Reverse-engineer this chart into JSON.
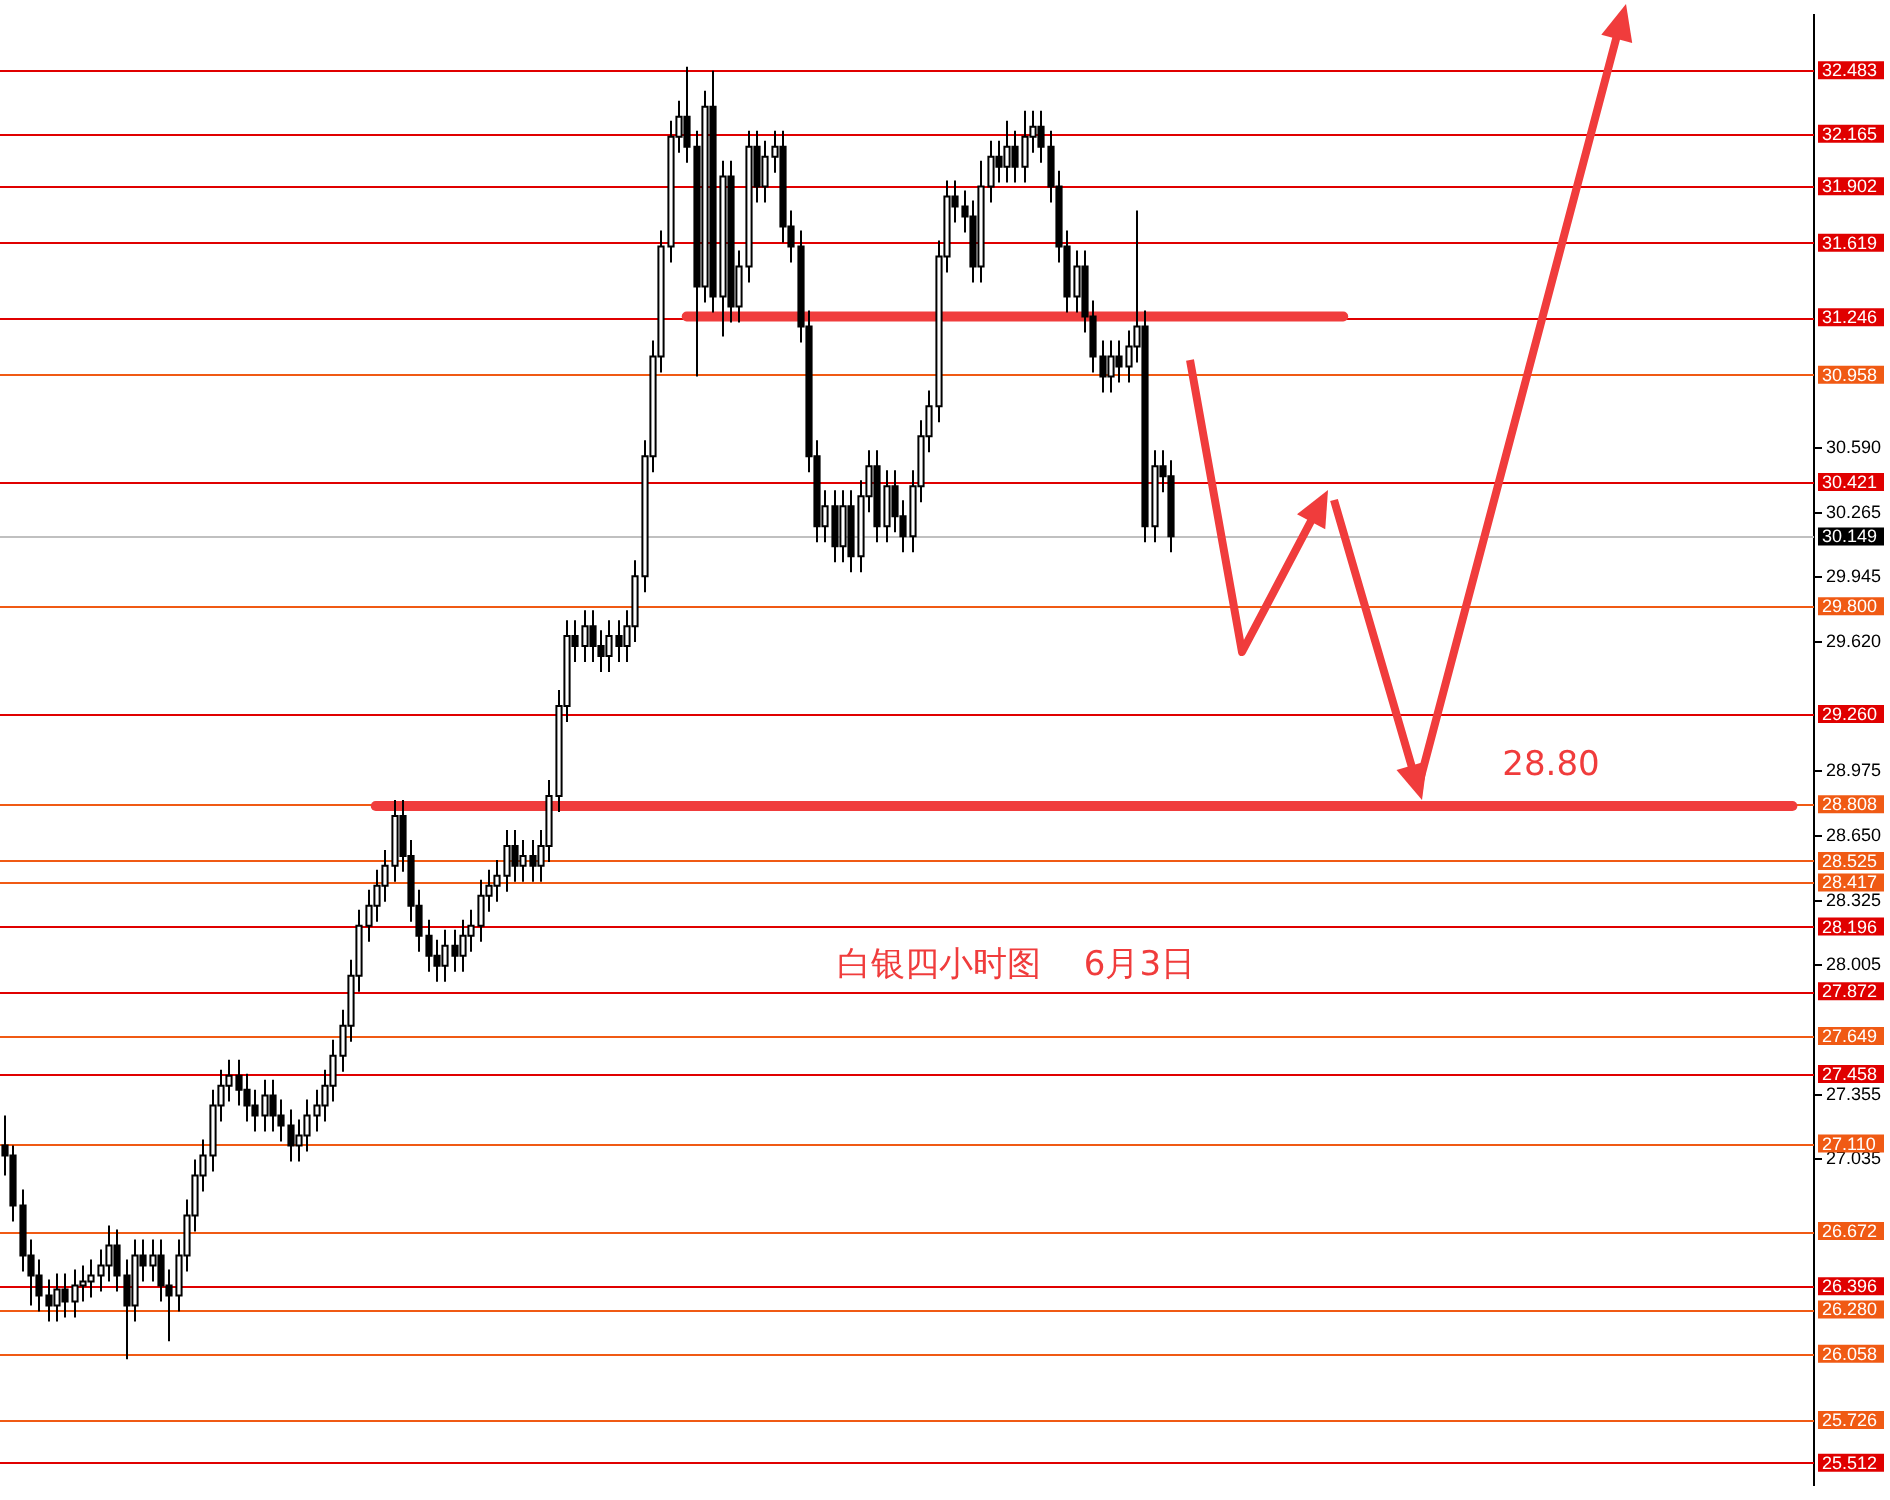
{
  "chart_data": {
    "type": "candlestick",
    "categories": [
      null,
      null,
      null,
      null,
      null,
      null,
      null,
      null,
      null,
      null,
      null,
      null,
      null,
      null,
      null,
      null,
      null,
      null,
      null,
      null,
      null,
      null,
      null,
      null,
      null,
      null,
      null,
      null,
      null,
      null,
      null,
      null,
      null,
      null,
      null,
      null,
      null,
      null,
      null,
      null,
      null,
      null,
      null,
      null,
      null,
      null,
      null,
      null,
      null,
      null,
      null,
      null,
      null,
      null,
      null,
      null,
      null,
      null,
      null,
      null,
      null,
      null,
      null,
      null,
      null,
      null,
      null,
      null,
      null,
      null,
      null,
      null,
      null,
      null,
      null,
      null,
      null,
      null,
      null,
      null,
      null,
      null,
      null,
      null,
      null,
      null,
      null,
      null,
      null,
      null,
      null,
      null,
      null,
      null,
      null,
      null,
      null,
      null,
      null,
      null,
      null,
      null,
      null,
      null,
      null,
      null,
      null,
      null,
      null,
      null,
      null,
      null,
      null,
      null,
      null,
      null,
      null,
      null,
      null,
      null,
      null,
      null,
      null,
      null,
      null,
      null,
      null,
      null,
      null,
      null,
      null,
      null,
      null,
      null,
      null,
      null,
      null,
      null,
      null,
      null,
      null,
      null,
      null,
      null,
      null,
      null,
      null,
      null,
      null,
      null,
      null,
      null,
      null,
      null,
      null,
      null,
      null,
      null,
      null,
      null,
      null,
      null,
      null,
      null,
      null,
      null,
      null,
      null,
      null,
      null,
      null,
      null,
      null,
      null,
      null,
      null,
      null,
      null,
      null,
      null,
      null,
      null,
      null,
      null,
      null,
      null,
      null,
      null,
      null,
      null,
      null,
      null,
      null,
      null,
      null,
      null,
      null,
      null,
      null,
      null,
      null,
      null,
      null,
      null,
      null,
      null,
      null,
      null,
      null,
      null
    ],
    "ohlc": [
      [
        27.1,
        27.25,
        26.95,
        27.05
      ],
      [
        27.05,
        27.1,
        26.72,
        26.8
      ],
      [
        26.8,
        26.88,
        26.47,
        26.55
      ],
      [
        26.55,
        26.63,
        26.3,
        26.45
      ],
      [
        26.45,
        26.53,
        26.27,
        26.35
      ],
      [
        26.35,
        26.43,
        26.22,
        26.3
      ],
      [
        26.3,
        26.46,
        26.22,
        26.38
      ],
      [
        26.38,
        26.46,
        26.24,
        26.32
      ],
      [
        26.32,
        26.48,
        26.24,
        26.4
      ],
      [
        26.4,
        26.5,
        26.32,
        26.42
      ],
      [
        26.42,
        26.53,
        26.34,
        26.45
      ],
      [
        26.45,
        26.58,
        26.37,
        26.5
      ],
      [
        26.5,
        26.7,
        26.42,
        26.6
      ],
      [
        26.6,
        26.68,
        26.37,
        26.45
      ],
      [
        26.45,
        26.53,
        26.03,
        26.3
      ],
      [
        26.3,
        26.63,
        26.22,
        26.55
      ],
      [
        26.55,
        26.63,
        26.42,
        26.5
      ],
      [
        26.5,
        26.63,
        26.42,
        26.55
      ],
      [
        26.55,
        26.63,
        26.32,
        26.4
      ],
      [
        26.4,
        26.48,
        26.12,
        26.35
      ],
      [
        26.35,
        26.63,
        26.27,
        26.55
      ],
      [
        26.55,
        26.83,
        26.47,
        26.75
      ],
      [
        26.75,
        27.03,
        26.67,
        26.95
      ],
      [
        26.95,
        27.13,
        26.87,
        27.05
      ],
      [
        27.05,
        27.38,
        26.97,
        27.3
      ],
      [
        27.3,
        27.48,
        27.22,
        27.4
      ],
      [
        27.4,
        27.53,
        27.32,
        27.45
      ],
      [
        27.45,
        27.53,
        27.3,
        27.38
      ],
      [
        27.38,
        27.46,
        27.22,
        27.3
      ],
      [
        27.3,
        27.38,
        27.17,
        27.25
      ],
      [
        27.25,
        27.43,
        27.17,
        27.35
      ],
      [
        27.35,
        27.43,
        27.17,
        27.25
      ],
      [
        27.25,
        27.33,
        27.12,
        27.2
      ],
      [
        27.2,
        27.28,
        27.02,
        27.1
      ],
      [
        27.1,
        27.23,
        27.02,
        27.15
      ],
      [
        27.15,
        27.33,
        27.07,
        27.25
      ],
      [
        27.25,
        27.38,
        27.17,
        27.3
      ],
      [
        27.3,
        27.48,
        27.22,
        27.4
      ],
      [
        27.4,
        27.63,
        27.32,
        27.55
      ],
      [
        27.55,
        27.78,
        27.47,
        27.7
      ],
      [
        27.7,
        28.03,
        27.62,
        27.95
      ],
      [
        27.95,
        28.28,
        27.87,
        28.2
      ],
      [
        28.2,
        28.38,
        28.12,
        28.3
      ],
      [
        28.3,
        28.48,
        28.22,
        28.4
      ],
      [
        28.4,
        28.58,
        28.32,
        28.5
      ],
      [
        28.5,
        28.83,
        28.42,
        28.75
      ],
      [
        28.75,
        28.83,
        28.47,
        28.55
      ],
      [
        28.55,
        28.63,
        28.22,
        28.3
      ],
      [
        28.3,
        28.38,
        28.07,
        28.15
      ],
      [
        28.15,
        28.23,
        27.97,
        28.05
      ],
      [
        28.05,
        28.13,
        27.92,
        28.0
      ],
      [
        28.0,
        28.18,
        27.92,
        28.1
      ],
      [
        28.1,
        28.18,
        27.97,
        28.05
      ],
      [
        28.05,
        28.23,
        27.97,
        28.15
      ],
      [
        28.15,
        28.28,
        28.07,
        28.2
      ],
      [
        28.2,
        28.43,
        28.12,
        28.35
      ],
      [
        28.35,
        28.48,
        28.27,
        28.4
      ],
      [
        28.4,
        28.53,
        28.32,
        28.45
      ],
      [
        28.45,
        28.68,
        28.37,
        28.6
      ],
      [
        28.6,
        28.68,
        28.42,
        28.5
      ],
      [
        28.5,
        28.63,
        28.42,
        28.55
      ],
      [
        28.55,
        28.63,
        28.42,
        28.5
      ],
      [
        28.5,
        28.68,
        28.42,
        28.6
      ],
      [
        28.6,
        28.93,
        28.52,
        28.85
      ],
      [
        28.85,
        29.38,
        28.77,
        29.3
      ],
      [
        29.3,
        29.73,
        29.22,
        29.65
      ],
      [
        29.65,
        29.73,
        29.52,
        29.6
      ],
      [
        29.6,
        29.78,
        29.52,
        29.7
      ],
      [
        29.7,
        29.78,
        29.52,
        29.6
      ],
      [
        29.6,
        29.68,
        29.47,
        29.55
      ],
      [
        29.55,
        29.73,
        29.47,
        29.65
      ],
      [
        29.65,
        29.73,
        29.52,
        29.6
      ],
      [
        29.6,
        29.78,
        29.52,
        29.7
      ],
      [
        29.7,
        30.03,
        29.62,
        29.95
      ],
      [
        29.95,
        30.63,
        29.87,
        30.55
      ],
      [
        30.55,
        31.13,
        30.47,
        31.05
      ],
      [
        31.05,
        31.68,
        30.97,
        31.6
      ],
      [
        31.6,
        32.23,
        31.52,
        32.15
      ],
      [
        32.15,
        32.33,
        32.07,
        32.25
      ],
      [
        32.25,
        32.5,
        32.02,
        32.1
      ],
      [
        32.1,
        32.18,
        30.95,
        31.4
      ],
      [
        31.4,
        32.38,
        31.32,
        32.3
      ],
      [
        32.3,
        32.48,
        31.27,
        31.35
      ],
      [
        31.35,
        32.03,
        31.15,
        31.95
      ],
      [
        31.95,
        32.03,
        31.22,
        31.3
      ],
      [
        31.3,
        31.58,
        31.22,
        31.5
      ],
      [
        31.5,
        32.18,
        31.42,
        32.1
      ],
      [
        32.1,
        32.18,
        31.82,
        31.9
      ],
      [
        31.9,
        32.13,
        31.82,
        32.05
      ],
      [
        32.05,
        32.18,
        31.97,
        32.1
      ],
      [
        32.1,
        32.18,
        31.62,
        31.7
      ],
      [
        31.7,
        31.78,
        31.52,
        31.6
      ],
      [
        31.6,
        31.68,
        31.12,
        31.2
      ],
      [
        31.2,
        31.28,
        30.47,
        30.55
      ],
      [
        30.55,
        30.63,
        30.12,
        30.2
      ],
      [
        30.2,
        30.38,
        30.12,
        30.3
      ],
      [
        30.3,
        30.38,
        30.02,
        30.1
      ],
      [
        30.1,
        30.38,
        30.02,
        30.3
      ],
      [
        30.3,
        30.38,
        29.97,
        30.05
      ],
      [
        30.05,
        30.43,
        29.97,
        30.35
      ],
      [
        30.35,
        30.58,
        30.27,
        30.5
      ],
      [
        30.5,
        30.58,
        30.12,
        30.2
      ],
      [
        30.2,
        30.48,
        30.12,
        30.4
      ],
      [
        30.4,
        30.48,
        30.17,
        30.25
      ],
      [
        30.25,
        30.33,
        30.07,
        30.15
      ],
      [
        30.15,
        30.48,
        30.07,
        30.4
      ],
      [
        30.4,
        30.73,
        30.32,
        30.65
      ],
      [
        30.65,
        30.88,
        30.57,
        30.8
      ],
      [
        30.8,
        31.63,
        30.72,
        31.55
      ],
      [
        31.55,
        31.93,
        31.47,
        31.85
      ],
      [
        31.85,
        31.93,
        31.72,
        31.8
      ],
      [
        31.8,
        31.88,
        31.67,
        31.75
      ],
      [
        31.75,
        31.83,
        31.42,
        31.5
      ],
      [
        31.5,
        32.03,
        31.42,
        31.9
      ],
      [
        31.9,
        32.13,
        31.82,
        32.05
      ],
      [
        32.05,
        32.13,
        31.92,
        32.0
      ],
      [
        32.0,
        32.23,
        31.92,
        32.1
      ],
      [
        32.1,
        32.18,
        31.92,
        32.0
      ],
      [
        32.0,
        32.28,
        31.92,
        32.15
      ],
      [
        32.15,
        32.28,
        32.07,
        32.2
      ],
      [
        32.2,
        32.28,
        32.02,
        32.1
      ],
      [
        32.1,
        32.18,
        31.82,
        31.9
      ],
      [
        31.9,
        31.98,
        31.52,
        31.6
      ],
      [
        31.6,
        31.68,
        31.27,
        31.35
      ],
      [
        31.35,
        31.58,
        31.27,
        31.5
      ],
      [
        31.5,
        31.58,
        31.17,
        31.25
      ],
      [
        31.25,
        31.33,
        30.97,
        31.05
      ],
      [
        31.05,
        31.13,
        30.87,
        30.95
      ],
      [
        30.95,
        31.13,
        30.87,
        31.05
      ],
      [
        31.05,
        31.13,
        30.92,
        31.0
      ],
      [
        31.0,
        31.18,
        30.92,
        31.1
      ],
      [
        31.1,
        31.78,
        31.02,
        31.2
      ],
      [
        31.2,
        31.28,
        30.12,
        30.2
      ],
      [
        30.2,
        30.58,
        30.12,
        30.5
      ],
      [
        30.5,
        30.58,
        30.37,
        30.45
      ],
      [
        30.45,
        30.53,
        30.07,
        30.15
      ],
      null,
      null,
      null,
      null,
      null,
      null,
      null,
      null,
      null,
      null,
      null,
      null,
      null,
      null,
      null,
      null,
      null,
      null,
      null,
      null,
      null,
      null,
      null,
      null,
      null,
      null,
      null,
      null,
      null,
      null,
      null,
      null,
      null,
      null,
      null,
      null,
      null,
      null,
      null,
      null,
      null,
      null,
      null,
      null,
      null,
      null,
      null,
      null,
      null,
      null,
      null,
      null,
      null,
      null,
      null,
      null,
      null,
      null,
      null,
      null,
      null,
      null,
      null,
      null,
      null,
      null,
      null,
      null,
      null,
      null,
      null,
      null,
      null,
      null
    ],
    "series": [
      {
        "type": "line",
        "color": "#f03c3c",
        "values": [
          null,
          null,
          null,
          null,
          null,
          null,
          null,
          null,
          null,
          null,
          null,
          null,
          null,
          null,
          null,
          null,
          null,
          null,
          null,
          null,
          null,
          null,
          null,
          null,
          null,
          null,
          null,
          null,
          null,
          null,
          null,
          null,
          null,
          null,
          null,
          null,
          null,
          null,
          null,
          null,
          null,
          null,
          null,
          null,
          null,
          null,
          null,
          null,
          null,
          null,
          null,
          null,
          null,
          null,
          null,
          null,
          null,
          null,
          null,
          null,
          null,
          null,
          null,
          null,
          null,
          null,
          null,
          null,
          null,
          null,
          null,
          null,
          null,
          null,
          null,
          null,
          null,
          null,
          null,
          31.25,
          null,
          null,
          null,
          null,
          null,
          null,
          null,
          null,
          null,
          null,
          null,
          null,
          null,
          null,
          null,
          null,
          null,
          null,
          null,
          null,
          null,
          null,
          null,
          null,
          null,
          null,
          null,
          null,
          null,
          null,
          null,
          null,
          null,
          null,
          null,
          null,
          null,
          null,
          null,
          null,
          null,
          null,
          null,
          null,
          null,
          null,
          null,
          null,
          null,
          null,
          null,
          null,
          null,
          null,
          null,
          null,
          null,
          null,
          null,
          null,
          null,
          null,
          null,
          null,
          null,
          null,
          null,
          null,
          null,
          null,
          null,
          null,
          null,
          null,
          null,
          31.25,
          null,
          null,
          null,
          null,
          null,
          null,
          null,
          null,
          null,
          null,
          null,
          null,
          null,
          null,
          null,
          null,
          null,
          null,
          null,
          null,
          null,
          null,
          null,
          null,
          null,
          null,
          null,
          null,
          null,
          null,
          null,
          null,
          null,
          null,
          null,
          null,
          null,
          null,
          null,
          null,
          null,
          null,
          null,
          null,
          null,
          null,
          null,
          null,
          null,
          null,
          null,
          null,
          null,
          null
        ]
      },
      {
        "type": "line",
        "color": "#f03c3c",
        "values": [
          null,
          null,
          null,
          null,
          null,
          null,
          null,
          null,
          null,
          null,
          null,
          null,
          null,
          null,
          null,
          null,
          null,
          null,
          null,
          null,
          null,
          null,
          null,
          null,
          null,
          null,
          null,
          null,
          null,
          null,
          null,
          null,
          null,
          null,
          null,
          null,
          null,
          null,
          null,
          null,
          null,
          null,
          null,
          28.8,
          null,
          null,
          null,
          null,
          null,
          null,
          null,
          null,
          null,
          null,
          null,
          null,
          null,
          null,
          null,
          null,
          null,
          null,
          null,
          null,
          null,
          null,
          null,
          null,
          null,
          null,
          null,
          null,
          null,
          null,
          null,
          null,
          null,
          null,
          null,
          null,
          null,
          null,
          null,
          null,
          null,
          null,
          null,
          null,
          null,
          null,
          null,
          null,
          null,
          null,
          null,
          null,
          null,
          null,
          null,
          null,
          null,
          null,
          null,
          null,
          null,
          null,
          null,
          null,
          null,
          null,
          null,
          null,
          null,
          null,
          null,
          null,
          null,
          null,
          null,
          null,
          null,
          null,
          null,
          null,
          null,
          null,
          null,
          null,
          null,
          null,
          null,
          null,
          null,
          null,
          null,
          null,
          null,
          null,
          null,
          null,
          null,
          null,
          null,
          null,
          null,
          null,
          null,
          null,
          null,
          null,
          null,
          null,
          null,
          null,
          null,
          null,
          null,
          null,
          null,
          null,
          null,
          null,
          null,
          null,
          null,
          null,
          null,
          null,
          null,
          null,
          null,
          null,
          null,
          null,
          null,
          null,
          null,
          null,
          null,
          null,
          null,
          null,
          null,
          null,
          null,
          null,
          null,
          null,
          null,
          null,
          null,
          null,
          null,
          null,
          null,
          null,
          null,
          null,
          null,
          null,
          null,
          null,
          null,
          null,
          null,
          null,
          null,
          28.8,
          null,
          null
        ]
      }
    ],
    "ylim": [
      25.4,
      32.76
    ],
    "yticks": [
      27.035,
      27.355,
      28.005,
      28.325,
      {
        "value": 28.65,
        "label": "28.650"
      },
      28.975,
      {
        "value": 29.62,
        "label": "29.620"
      },
      29.945,
      30.265,
      {
        "value": 30.59,
        "label": "30.590"
      }
    ],
    "tick_labels": "y",
    "ref_lines": [
      {
        "axis": "y",
        "value": 32.483,
        "label": "32.483",
        "color": "#e00000"
      },
      {
        "axis": "y",
        "value": 32.165,
        "label": "32.165",
        "color": "#e00000"
      },
      {
        "axis": "y",
        "value": 31.902,
        "label": "31.902",
        "color": "#e00000"
      },
      {
        "axis": "y",
        "value": 31.619,
        "label": "31.619",
        "color": "#e00000"
      },
      {
        "axis": "y",
        "value": 31.246,
        "label": "31.246",
        "color": "#e00000"
      },
      {
        "axis": "y",
        "value": 30.958,
        "label": "30.958",
        "color": "#f05a14"
      },
      {
        "axis": "y",
        "value": 30.421,
        "label": "30.421",
        "color": "#e00000"
      },
      {
        "axis": "y",
        "value": 30.149,
        "label": "30.149",
        "color": "#c0c0c0"
      },
      {
        "axis": "y",
        "value": 29.8,
        "label": "29.800",
        "color": "#f05a14"
      },
      {
        "axis": "y",
        "value": 29.26,
        "label": "29.260",
        "color": "#e00000"
      },
      {
        "axis": "y",
        "value": 28.808,
        "label": "28.808",
        "color": "#f05a14"
      },
      {
        "axis": "y",
        "value": 28.525,
        "label": "28.525",
        "color": "#f05a14"
      },
      {
        "axis": "y",
        "value": 28.417,
        "label": "28.417",
        "color": "#f05a14"
      },
      {
        "axis": "y",
        "value": 28.196,
        "label": "28.196",
        "color": "#e00000"
      },
      {
        "axis": "y",
        "value": 27.872,
        "label": "27.872",
        "color": "#e00000"
      },
      {
        "axis": "y",
        "value": 27.649,
        "label": "27.649",
        "color": "#f05a14"
      },
      {
        "axis": "y",
        "value": 27.458,
        "label": "27.458",
        "color": "#e00000"
      },
      {
        "axis": "y",
        "value": 27.11,
        "label": "27.110",
        "color": "#f05a14"
      },
      {
        "axis": "y",
        "value": 26.672,
        "label": "26.672",
        "color": "#f05a14"
      },
      {
        "axis": "y",
        "value": 26.396,
        "label": "26.396",
        "color": "#e00000"
      },
      {
        "axis": "y",
        "value": 26.28,
        "label": "26.280",
        "color": "#f05a14"
      },
      {
        "axis": "y",
        "value": 26.058,
        "label": "26.058",
        "color": "#f05a14"
      },
      {
        "axis": "y",
        "value": 25.726,
        "label": "25.726",
        "color": "#f05a14"
      },
      {
        "axis": "y",
        "value": 25.512,
        "label": "25.512",
        "color": "#e00000"
      }
    ],
    "annotations": [
      "白银四小时图    6月3日",
      {
        "text": "28.80",
        "y": 28.8
      }
    ]
  }
}
